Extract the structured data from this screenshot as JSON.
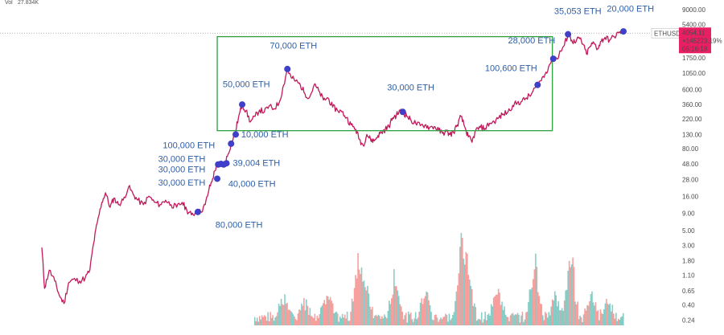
{
  "header": {
    "volume_label": "Vol",
    "volume_value": "27.834K"
  },
  "price_badge": {
    "symbol": "ETHUSD",
    "last_price": "4054.11",
    "change": "+145223.19%",
    "countdown": "05:16:18",
    "color": "#e91e63"
  },
  "colors": {
    "price_line": "#c2185b",
    "marker": "#3f3fc8",
    "highlight_box": "#2e9e3e",
    "annotation_text": "#2e5fa8",
    "volume_up": "#26a69a",
    "volume_down": "#ef5350"
  },
  "chart_data": {
    "type": "line",
    "y_scale": "log",
    "ylim": [
      0.2,
      9000
    ],
    "y_ticks": [
      "9000.00",
      "5400.00",
      "2900.00",
      "1750.00",
      "1050.00",
      "600.00",
      "360.00",
      "220.00",
      "130.00",
      "80.00",
      "48.00",
      "28.00",
      "16.00",
      "9.00",
      "5.00",
      "3.00",
      "1.80",
      "1.10",
      "0.65",
      "0.40",
      "0.24"
    ],
    "price_line_level": 4054.11,
    "series": [
      {
        "points": [
          [
            0.0,
            2.8
          ],
          [
            0.3,
            0.7
          ],
          [
            0.8,
            1.3
          ],
          [
            1.4,
            0.9
          ],
          [
            1.9,
            0.55
          ],
          [
            2.4,
            0.42
          ],
          [
            2.9,
            0.85
          ],
          [
            3.4,
            0.95
          ],
          [
            4.1,
            0.9
          ],
          [
            4.7,
            1.0
          ],
          [
            5.2,
            1.3
          ],
          [
            5.6,
            3.2
          ],
          [
            6.0,
            6.5
          ],
          [
            6.5,
            13
          ],
          [
            6.9,
            18
          ],
          [
            7.4,
            11
          ],
          [
            7.8,
            15
          ],
          [
            8.3,
            12
          ],
          [
            8.8,
            14
          ],
          [
            9.4,
            22
          ],
          [
            9.9,
            17
          ],
          [
            10.4,
            14
          ],
          [
            11.0,
            12
          ],
          [
            11.6,
            16
          ],
          [
            12.2,
            13
          ],
          [
            12.8,
            12
          ],
          [
            13.4,
            14
          ],
          [
            14.0,
            12
          ],
          [
            14.6,
            11
          ],
          [
            15.2,
            13
          ],
          [
            15.7,
            10
          ],
          [
            16.2,
            8.5
          ],
          [
            16.7,
            9.2
          ],
          [
            17.2,
            9.5
          ],
          [
            17.7,
            12
          ],
          [
            18.1,
            20
          ],
          [
            18.5,
            29
          ],
          [
            18.9,
            45
          ],
          [
            19.3,
            48
          ],
          [
            19.7,
            47
          ],
          [
            20.1,
            62
          ],
          [
            20.5,
            95
          ],
          [
            20.9,
            130
          ],
          [
            21.3,
            230
          ],
          [
            21.7,
            360
          ],
          [
            22.1,
            290
          ],
          [
            22.6,
            200
          ],
          [
            23.1,
            240
          ],
          [
            23.6,
            300
          ],
          [
            24.1,
            280
          ],
          [
            24.6,
            340
          ],
          [
            25.1,
            310
          ],
          [
            25.7,
            380
          ],
          [
            26.2,
            700
          ],
          [
            26.6,
            1200
          ],
          [
            27.0,
            900
          ],
          [
            27.5,
            800
          ],
          [
            28.0,
            700
          ],
          [
            28.5,
            520
          ],
          [
            29.0,
            460
          ],
          [
            29.5,
            700
          ],
          [
            30.0,
            570
          ],
          [
            30.5,
            420
          ],
          [
            31.0,
            450
          ],
          [
            31.5,
            330
          ],
          [
            32.0,
            300
          ],
          [
            32.5,
            280
          ],
          [
            33.0,
            230
          ],
          [
            33.5,
            180
          ],
          [
            34.0,
            155
          ],
          [
            34.4,
            110
          ],
          [
            34.8,
            90
          ],
          [
            35.2,
            130
          ],
          [
            35.6,
            110
          ],
          [
            36.0,
            105
          ],
          [
            36.4,
            125
          ],
          [
            36.8,
            140
          ],
          [
            37.2,
            155
          ],
          [
            37.6,
            170
          ],
          [
            38.0,
            230
          ],
          [
            38.4,
            250
          ],
          [
            38.8,
            290
          ],
          [
            39.2,
            270
          ],
          [
            39.6,
            240
          ],
          [
            40.0,
            210
          ],
          [
            40.5,
            190
          ],
          [
            41.0,
            175
          ],
          [
            41.5,
            180
          ],
          [
            42.0,
            165
          ],
          [
            42.5,
            170
          ],
          [
            43.0,
            150
          ],
          [
            43.4,
            135
          ],
          [
            43.8,
            145
          ],
          [
            44.2,
            130
          ],
          [
            44.6,
            140
          ],
          [
            45.0,
            180
          ],
          [
            45.4,
            240
          ],
          [
            45.8,
            170
          ],
          [
            46.2,
            120
          ],
          [
            46.6,
            100
          ],
          [
            47.0,
            150
          ],
          [
            47.5,
            165
          ],
          [
            48.0,
            160
          ],
          [
            48.5,
            190
          ],
          [
            49.0,
            200
          ],
          [
            49.5,
            230
          ],
          [
            50.0,
            260
          ],
          [
            50.5,
            280
          ],
          [
            51.0,
            350
          ],
          [
            51.5,
            380
          ],
          [
            52.0,
            400
          ],
          [
            52.5,
            450
          ],
          [
            53.0,
            500
          ],
          [
            53.5,
            650
          ],
          [
            54.0,
            800
          ],
          [
            54.5,
            1000
          ],
          [
            55.0,
            1400
          ],
          [
            55.4,
            1800
          ],
          [
            55.8,
            1700
          ],
          [
            56.2,
            2200
          ],
          [
            56.6,
            2700
          ],
          [
            57.0,
            3900
          ],
          [
            57.4,
            3200
          ],
          [
            57.8,
            2900
          ],
          [
            58.2,
            3500
          ],
          [
            58.6,
            2800
          ],
          [
            59.0,
            2000
          ],
          [
            59.4,
            2600
          ],
          [
            59.8,
            2900
          ],
          [
            60.2,
            2400
          ],
          [
            60.6,
            3100
          ],
          [
            61.0,
            3500
          ],
          [
            61.5,
            3200
          ],
          [
            62.0,
            3600
          ],
          [
            62.5,
            4100
          ],
          [
            63.0,
            4300
          ]
        ]
      }
    ],
    "markers": [
      {
        "label": "80,000 ETH",
        "x": 16.9,
        "y": 9.4,
        "lx": 18.8,
        "ly": 5.5
      },
      {
        "label": "30,000 ETH",
        "x": 19.1,
        "y": 47,
        "lx": 12.6,
        "ly": 23
      },
      {
        "label": "30,000 ETH",
        "x": 19.4,
        "y": 48,
        "lx": 12.6,
        "ly": 36
      },
      {
        "label": "30,000 ETH",
        "x": 19.7,
        "y": 47,
        "lx": 12.6,
        "ly": 51
      },
      {
        "label": "39,004 ETH",
        "x": 20.0,
        "y": 49,
        "lx": 20.7,
        "ly": 45
      },
      {
        "label": "40,000 ETH",
        "x": 19.0,
        "y": 29,
        "lx": 20.2,
        "ly": 22
      },
      {
        "label": "100,000 ETH",
        "x": 20.5,
        "y": 95,
        "lx": 13.1,
        "ly": 82
      },
      {
        "label": "10,000 ETH",
        "x": 21.0,
        "y": 130,
        "lx": 21.6,
        "ly": 118
      },
      {
        "label": "50,000 ETH",
        "x": 21.7,
        "y": 360,
        "lx": 19.6,
        "ly": 650
      },
      {
        "label": "70,000 ETH",
        "x": 26.6,
        "y": 1200,
        "lx": 24.7,
        "ly": 2400
      },
      {
        "label": "30,000 ETH",
        "x": 39.1,
        "y": 280,
        "lx": 37.4,
        "ly": 580
      },
      {
        "label": "100,600 ETH",
        "x": 53.7,
        "y": 700,
        "lx": 48.0,
        "ly": 1120
      },
      {
        "label": "28,000 ETH",
        "x": 55.4,
        "y": 1700,
        "lx": 50.5,
        "ly": 2850
      },
      {
        "label": "35,053 ETH",
        "x": 57.0,
        "y": 3900,
        "lx": 55.5,
        "ly": 7700
      },
      {
        "label": "20,000 ETH",
        "x": 63.0,
        "y": 4300,
        "lx": 61.2,
        "ly": 8400
      }
    ],
    "highlight_box": {
      "x_range": [
        19.0,
        55.3
      ],
      "y_range": [
        148,
        3600
      ]
    },
    "volume": {
      "x_start": 23.0,
      "x_end": 63.0,
      "spikes": [
        {
          "x": 26.1,
          "v": 0.32
        },
        {
          "x": 28.5,
          "v": 0.22
        },
        {
          "x": 30.8,
          "v": 0.35
        },
        {
          "x": 34.2,
          "v": 0.72
        },
        {
          "x": 35.0,
          "v": 0.45
        },
        {
          "x": 38.2,
          "v": 0.58
        },
        {
          "x": 41.4,
          "v": 0.4
        },
        {
          "x": 45.4,
          "v": 1.0
        },
        {
          "x": 46.1,
          "v": 0.62
        },
        {
          "x": 49.3,
          "v": 0.48
        },
        {
          "x": 53.3,
          "v": 0.84
        },
        {
          "x": 55.6,
          "v": 0.3
        },
        {
          "x": 57.2,
          "v": 0.88
        },
        {
          "x": 59.4,
          "v": 0.33
        },
        {
          "x": 61.2,
          "v": 0.22
        }
      ]
    }
  }
}
